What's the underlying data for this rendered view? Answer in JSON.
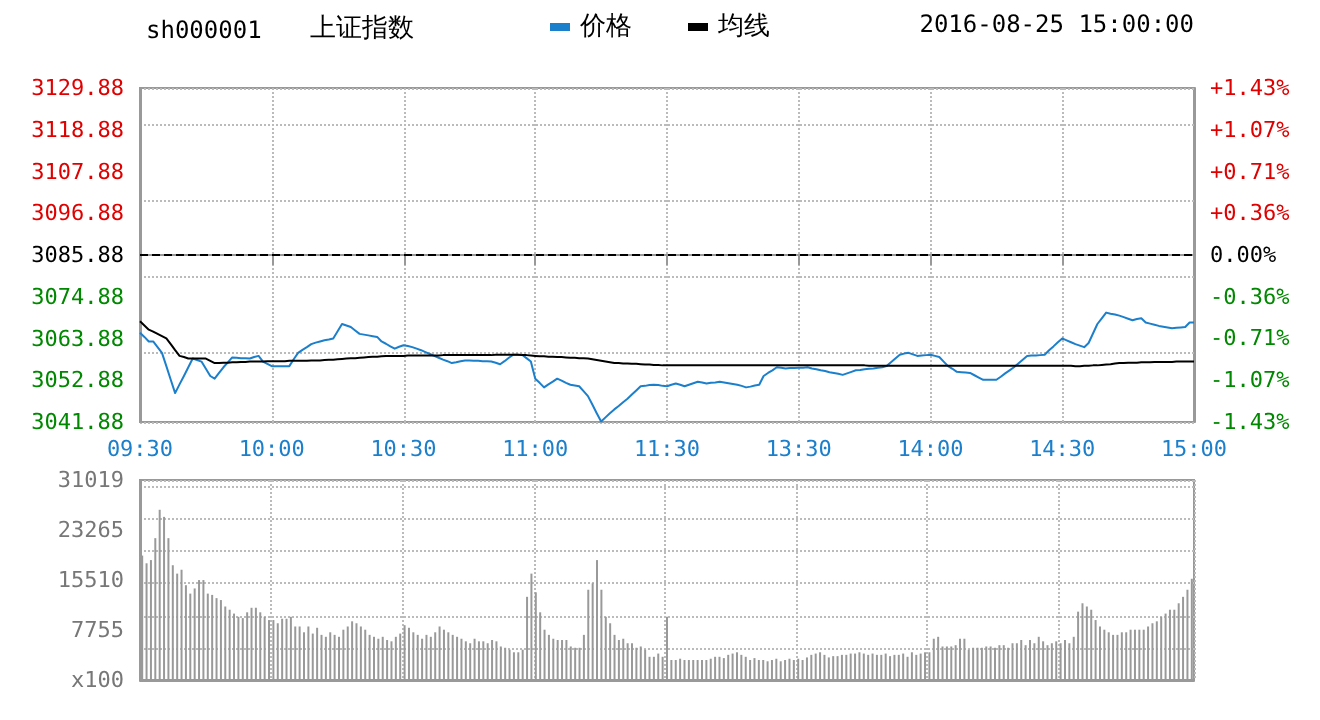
{
  "chart_data": [
    {
      "type": "line",
      "title": "上证指数",
      "subtitle": "sh000001",
      "annotations": [
        "2016-08-25 15:00:00"
      ],
      "legend": "top",
      "grid": true,
      "marker": "none",
      "line_style": "solid",
      "categories": [
        "09:30",
        null,
        null,
        null,
        null,
        null,
        null,
        null,
        null,
        null,
        null,
        null,
        null,
        null,
        null,
        null,
        null,
        null,
        null,
        null,
        null,
        null,
        null,
        null,
        null,
        null,
        null,
        null,
        null,
        null,
        "10:00",
        null,
        null,
        null,
        null,
        null,
        null,
        null,
        null,
        null,
        null,
        null,
        null,
        null,
        null,
        null,
        null,
        null,
        null,
        null,
        null,
        null,
        null,
        null,
        null,
        null,
        null,
        null,
        null,
        null,
        "10:30",
        null,
        null,
        null,
        null,
        null,
        null,
        null,
        null,
        null,
        null,
        null,
        null,
        null,
        null,
        null,
        null,
        null,
        null,
        null,
        null,
        null,
        null,
        null,
        null,
        null,
        null,
        null,
        null,
        null,
        "11:00",
        null,
        null,
        null,
        null,
        null,
        null,
        null,
        null,
        null,
        null,
        null,
        null,
        null,
        null,
        null,
        null,
        null,
        null,
        null,
        null,
        null,
        null,
        null,
        null,
        null,
        null,
        null,
        null,
        null,
        "11:30",
        null,
        null,
        null,
        null,
        null,
        null,
        null,
        null,
        null,
        null,
        null,
        null,
        null,
        null,
        null,
        null,
        null,
        null,
        null,
        null,
        null,
        null,
        null,
        null,
        null,
        null,
        null,
        null,
        null,
        "13:30",
        null,
        null,
        null,
        null,
        null,
        null,
        null,
        null,
        null,
        null,
        null,
        null,
        null,
        null,
        null,
        null,
        null,
        null,
        null,
        null,
        null,
        null,
        null,
        null,
        null,
        null,
        null,
        null,
        null,
        "14:00",
        null,
        null,
        null,
        null,
        null,
        null,
        null,
        null,
        null,
        null,
        null,
        null,
        null,
        null,
        null,
        null,
        null,
        null,
        null,
        null,
        null,
        null,
        null,
        null,
        null,
        null,
        null,
        null,
        null,
        "14:30",
        null,
        null,
        null,
        null,
        null,
        null,
        null,
        null,
        null,
        null,
        null,
        null,
        null,
        null,
        null,
        null,
        null,
        null,
        null,
        null,
        null,
        null,
        null,
        null,
        null,
        null,
        null,
        null,
        null,
        "15:00"
      ],
      "ylim": [
        3041.88,
        3129.88
      ],
      "yticks": [
        {
          "value": 3041.88,
          "label": "3041.88"
        },
        {
          "value": 3052.88,
          "label": "3052.88"
        },
        {
          "value": 3063.88,
          "label": "3063.88"
        },
        {
          "value": 3074.88,
          "label": "3074.88"
        },
        {
          "value": 3085.88,
          "label": "3085.88"
        },
        {
          "value": 3096.88,
          "label": "3096.88"
        },
        {
          "value": 3107.88,
          "label": "3107.88"
        },
        {
          "value": 3118.88,
          "label": "3118.88"
        },
        {
          "value": 3129.88,
          "label": "3129.88"
        }
      ],
      "y2lim": [
        -1.43,
        1.43
      ],
      "y2ticks": [
        {
          "value": -1.43,
          "label": "-1.43%"
        },
        {
          "value": -1.07,
          "label": "-1.07%"
        },
        {
          "value": -0.71,
          "label": "-0.71%"
        },
        {
          "value": -0.36,
          "label": "-0.36%"
        },
        {
          "value": 0,
          "label": "0.00%"
        },
        {
          "value": 0.36,
          "label": "+0.36%"
        },
        {
          "value": 0.71,
          "label": "+0.71%"
        },
        {
          "value": 1.07,
          "label": "+1.07%"
        },
        {
          "value": 1.43,
          "label": "+1.43%"
        }
      ],
      "ref_lines": [
        {
          "axis": "y",
          "value": 3085.88,
          "label": null,
          "color": "#000000",
          "line_style": "dashed"
        }
      ],
      "series": [
        {
          "name": "价格",
          "color": "#1b7fcc",
          "values": [
            3065.4,
            3064.3,
            3063.1,
            3063.1,
            3061.6,
            3060.1,
            3056.6,
            3053.0,
            3049.5,
            3051.8,
            3054.0,
            3056.3,
            3058.6,
            3058.2,
            3057.8,
            3055.9,
            3054.0,
            3053.3,
            3054.8,
            3056.3,
            3057.6,
            3058.9,
            3058.8,
            3058.7,
            3058.7,
            3058.6,
            3059.0,
            3059.3,
            3057.8,
            3057.2,
            3056.6,
            3056.6,
            3056.6,
            3056.6,
            3056.6,
            3058.4,
            3060.1,
            3060.9,
            3061.6,
            3062.4,
            3062.8,
            3063.1,
            3063.4,
            3063.6,
            3063.9,
            3065.8,
            3067.7,
            3067.3,
            3066.9,
            3066.0,
            3065.1,
            3064.9,
            3064.7,
            3064.5,
            3064.3,
            3063.1,
            3062.5,
            3061.8,
            3061.2,
            3061.7,
            3062.1,
            3061.9,
            3061.6,
            3061.2,
            3060.8,
            3060.3,
            3059.8,
            3059.3,
            3058.8,
            3058.3,
            3057.9,
            3057.4,
            3057.6,
            3057.9,
            3058.1,
            3058.1,
            3058.0,
            3058.0,
            3057.9,
            3057.9,
            3057.8,
            3057.5,
            3057.1,
            3057.9,
            3058.8,
            3059.6,
            3059.6,
            3059.6,
            3058.7,
            3057.8,
            3053.3,
            3052.2,
            3051.0,
            3051.8,
            3052.5,
            3053.3,
            3052.8,
            3052.2,
            3051.7,
            3051.5,
            3051.3,
            3050.0,
            3048.7,
            3046.5,
            3044.2,
            3042.0,
            3043.1,
            3044.2,
            3045.2,
            3046.1,
            3047.1,
            3048.0,
            3049.1,
            3050.2,
            3051.3,
            3051.4,
            3051.6,
            3051.7,
            3051.6,
            3051.4,
            3051.3,
            3051.7,
            3052.0,
            3051.7,
            3051.3,
            3051.7,
            3052.1,
            3052.5,
            3052.3,
            3052.0,
            3052.2,
            3052.3,
            3052.5,
            3052.3,
            3052.1,
            3051.9,
            3051.7,
            3051.4,
            3051.0,
            3051.2,
            3051.5,
            3051.7,
            3054.0,
            3054.8,
            3055.5,
            3056.3,
            3056.2,
            3056.0,
            3056.1,
            3056.1,
            3056.2,
            3056.2,
            3056.3,
            3056.0,
            3055.8,
            3055.5,
            3055.3,
            3055.0,
            3054.8,
            3054.6,
            3054.3,
            3054.7,
            3055.1,
            3055.5,
            3055.6,
            3055.8,
            3055.9,
            3056.0,
            3056.2,
            3056.3,
            3056.6,
            3057.6,
            3058.6,
            3059.6,
            3059.9,
            3060.1,
            3059.7,
            3059.3,
            3059.4,
            3059.5,
            3059.6,
            3059.3,
            3059.0,
            3057.8,
            3056.6,
            3055.9,
            3055.1,
            3055.0,
            3054.9,
            3054.8,
            3054.2,
            3053.6,
            3053.0,
            3053.0,
            3053.0,
            3053.0,
            3053.8,
            3054.7,
            3055.5,
            3056.3,
            3057.3,
            3058.3,
            3059.3,
            3059.4,
            3059.4,
            3059.5,
            3059.6,
            3060.8,
            3061.8,
            3062.9,
            3063.9,
            3063.4,
            3062.9,
            3062.4,
            3062.0,
            3061.6,
            3062.7,
            3065.2,
            3067.7,
            3069.2,
            3070.7,
            3070.4,
            3070.2,
            3069.9,
            3069.5,
            3069.1,
            3068.7,
            3069.0,
            3069.2,
            3068.1,
            3067.8,
            3067.5,
            3067.2,
            3067.0,
            3066.8,
            3066.6,
            3066.7,
            3066.8,
            3066.9,
            3068.1,
            3068.1
          ]
        },
        {
          "name": "均线",
          "color": "#000000",
          "values": [
            3068.4,
            3067.3,
            3066.2,
            3065.7,
            3065.1,
            3064.5,
            3063.9,
            3062.4,
            3060.8,
            3059.3,
            3059.0,
            3058.6,
            3058.6,
            3058.6,
            3058.6,
            3058.6,
            3058.0,
            3057.4,
            3057.4,
            3057.5,
            3057.5,
            3057.6,
            3057.6,
            3057.7,
            3057.7,
            3057.8,
            3057.8,
            3057.8,
            3057.8,
            3057.9,
            3057.9,
            3057.9,
            3057.9,
            3057.9,
            3058.0,
            3058.0,
            3058.0,
            3058.0,
            3058.0,
            3058.1,
            3058.1,
            3058.1,
            3058.2,
            3058.3,
            3058.3,
            3058.4,
            3058.5,
            3058.6,
            3058.7,
            3058.7,
            3058.8,
            3058.9,
            3059.0,
            3059.1,
            3059.1,
            3059.2,
            3059.3,
            3059.3,
            3059.3,
            3059.3,
            3059.3,
            3059.4,
            3059.4,
            3059.4,
            3059.4,
            3059.4,
            3059.4,
            3059.4,
            3059.4,
            3059.5,
            3059.5,
            3059.5,
            3059.5,
            3059.5,
            3059.5,
            3059.5,
            3059.5,
            3059.5,
            3059.5,
            3059.5,
            3059.5,
            3059.6,
            3059.6,
            3059.6,
            3059.6,
            3059.6,
            3059.6,
            3059.5,
            3059.5,
            3059.4,
            3059.3,
            3059.2,
            3059.2,
            3059.1,
            3059.1,
            3059.0,
            3059.0,
            3058.9,
            3058.8,
            3058.8,
            3058.7,
            3058.7,
            3058.6,
            3058.4,
            3058.2,
            3058.0,
            3057.8,
            3057.6,
            3057.4,
            3057.4,
            3057.3,
            3057.3,
            3057.2,
            3057.2,
            3057.1,
            3057.0,
            3057.0,
            3056.9,
            3056.9,
            3056.8,
            3056.8,
            3056.8,
            3056.8,
            3056.8,
            3056.8,
            3056.8,
            3056.8,
            3056.8,
            3056.8,
            3056.8,
            3056.8,
            3056.8,
            3056.8,
            3056.8,
            3056.8,
            3056.8,
            3056.8,
            3056.8,
            3056.8,
            3056.8,
            3056.8,
            3056.8,
            3056.8,
            3056.8,
            3056.8,
            3056.8,
            3056.8,
            3056.8,
            3056.8,
            3056.8,
            3056.8,
            3056.8,
            3056.8,
            3056.8,
            3056.8,
            3056.8,
            3056.8,
            3056.8,
            3056.8,
            3056.8,
            3056.8,
            3056.8,
            3056.8,
            3056.8,
            3056.8,
            3056.8,
            3056.7,
            3056.7,
            3056.7,
            3056.7,
            3056.7,
            3056.7,
            3056.7,
            3056.7,
            3056.7,
            3056.7,
            3056.7,
            3056.7,
            3056.7,
            3056.7,
            3056.7,
            3056.7,
            3056.7,
            3056.7,
            3056.7,
            3056.7,
            3056.7,
            3056.7,
            3056.7,
            3056.7,
            3056.7,
            3056.7,
            3056.7,
            3056.7,
            3056.7,
            3056.7,
            3056.7,
            3056.7,
            3056.7,
            3056.7,
            3056.7,
            3056.7,
            3056.7,
            3056.7,
            3056.7,
            3056.7,
            3056.7,
            3056.7,
            3056.7,
            3056.7,
            3056.7,
            3056.7,
            3056.7,
            3056.6,
            3056.6,
            3056.7,
            3056.7,
            3056.8,
            3056.8,
            3056.9,
            3057.0,
            3057.1,
            3057.3,
            3057.4,
            3057.4,
            3057.5,
            3057.5,
            3057.5,
            3057.6,
            3057.6,
            3057.6,
            3057.7,
            3057.7,
            3057.7,
            3057.7,
            3057.7,
            3057.8,
            3057.8,
            3057.8,
            3057.8,
            3057.8
          ]
        }
      ]
    },
    {
      "type": "bar",
      "color": "#999999",
      "grid": true,
      "tick_labels": "y",
      "categories": [
        null,
        null,
        null,
        null,
        null,
        null,
        null,
        null,
        null,
        null,
        null,
        null,
        null,
        null,
        null,
        null,
        null,
        null,
        null,
        null,
        null,
        null,
        null,
        null,
        null,
        null,
        null,
        null,
        null,
        null,
        null,
        null,
        null,
        null,
        null,
        null,
        null,
        null,
        null,
        null,
        null,
        null,
        null,
        null,
        null,
        null,
        null,
        null,
        null,
        null,
        null,
        null,
        null,
        null,
        null,
        null,
        null,
        null,
        null,
        null,
        null,
        null,
        null,
        null,
        null,
        null,
        null,
        null,
        null,
        null,
        null,
        null,
        null,
        null,
        null,
        null,
        null,
        null,
        null,
        null,
        null,
        null,
        null,
        null,
        null,
        null,
        null,
        null,
        null,
        null,
        null,
        null,
        null,
        null,
        null,
        null,
        null,
        null,
        null,
        null,
        null,
        null,
        null,
        null,
        null,
        null,
        null,
        null,
        null,
        null,
        null,
        null,
        null,
        null,
        null,
        null,
        null,
        null,
        null,
        null,
        null,
        null,
        null,
        null,
        null,
        null,
        null,
        null,
        null,
        null,
        null,
        null,
        null,
        null,
        null,
        null,
        null,
        null,
        null,
        null,
        null,
        null,
        null,
        null,
        null,
        null,
        null,
        null,
        null,
        null,
        null,
        null,
        null,
        null,
        null,
        null,
        null,
        null,
        null,
        null,
        null,
        null,
        null,
        null,
        null,
        null,
        null,
        null,
        null,
        null,
        null,
        null,
        null,
        null,
        null,
        null,
        null,
        null,
        null,
        null,
        null,
        null,
        null,
        null,
        null,
        null,
        null,
        null,
        null,
        null,
        null,
        null,
        null,
        null,
        null,
        null,
        null,
        null,
        null,
        null,
        null,
        null,
        null,
        null,
        null,
        null,
        null,
        null,
        null,
        null,
        null,
        null,
        null,
        null,
        null,
        null,
        null,
        null,
        null,
        null,
        null,
        null,
        null,
        null,
        null,
        null,
        null,
        null,
        null,
        null,
        null,
        null,
        null,
        null,
        null,
        null,
        null,
        null,
        null,
        null,
        null
      ],
      "ylim": [
        0,
        31019
      ],
      "yticks": [
        {
          "value": 0,
          "label": "x100"
        },
        7755,
        15510,
        23265,
        31019
      ],
      "values": [
        19300,
        18100,
        18600,
        22000,
        26400,
        25300,
        22000,
        17800,
        16500,
        17100,
        14700,
        13400,
        14200,
        15500,
        15500,
        13400,
        13200,
        12700,
        12400,
        11400,
        10900,
        10300,
        9800,
        9600,
        10500,
        11200,
        11200,
        10500,
        9800,
        9300,
        9300,
        8800,
        9500,
        9500,
        9800,
        8300,
        8300,
        7400,
        8300,
        7200,
        8100,
        7000,
        6700,
        7400,
        7000,
        6700,
        7800,
        8300,
        9100,
        8800,
        8300,
        7800,
        7000,
        6700,
        6400,
        6700,
        6200,
        6000,
        6700,
        7200,
        8500,
        8100,
        7400,
        7000,
        6400,
        7000,
        6700,
        7400,
        8300,
        7800,
        7400,
        7000,
        6700,
        6400,
        6000,
        5700,
        6400,
        6000,
        6000,
        5700,
        6200,
        6000,
        5200,
        5000,
        4700,
        4300,
        4300,
        4700,
        12900,
        16500,
        13600,
        10500,
        7800,
        7000,
        6400,
        6200,
        6200,
        6200,
        5200,
        5000,
        5000,
        7000,
        14000,
        15000,
        18600,
        14000,
        9800,
        8800,
        7000,
        6200,
        6400,
        5700,
        5700,
        5000,
        5200,
        4700,
        3600,
        3600,
        4100,
        3600,
        9800,
        3100,
        3100,
        3300,
        3100,
        3100,
        3100,
        3100,
        3100,
        3100,
        3300,
        3600,
        3600,
        3400,
        3900,
        4100,
        4300,
        3900,
        3600,
        3100,
        3400,
        3100,
        3100,
        2900,
        3100,
        3300,
        2900,
        3100,
        3300,
        3100,
        3300,
        3100,
        3500,
        3900,
        4100,
        4300,
        3900,
        3500,
        3700,
        3700,
        3900,
        3900,
        4100,
        4100,
        4300,
        4100,
        3900,
        4100,
        3900,
        3900,
        4100,
        3700,
        3900,
        3900,
        4100,
        3600,
        4300,
        3900,
        4100,
        4300,
        4300,
        6400,
        6700,
        5200,
        5200,
        5200,
        5400,
        6400,
        6400,
        4700,
        5000,
        5000,
        5000,
        5200,
        5200,
        5000,
        5400,
        5400,
        5000,
        5700,
        5700,
        6200,
        5400,
        6200,
        5700,
        6700,
        6000,
        5400,
        5700,
        6000,
        5700,
        6200,
        5700,
        6700,
        10600,
        11900,
        11400,
        10900,
        9300,
        8300,
        7800,
        7400,
        7000,
        7000,
        7400,
        7400,
        7800,
        7800,
        7800,
        7800,
        8300,
        8800,
        9100,
        9800,
        10300,
        10900,
        10900,
        11900,
        12900,
        14000,
        15700
      ]
    }
  ]
}
